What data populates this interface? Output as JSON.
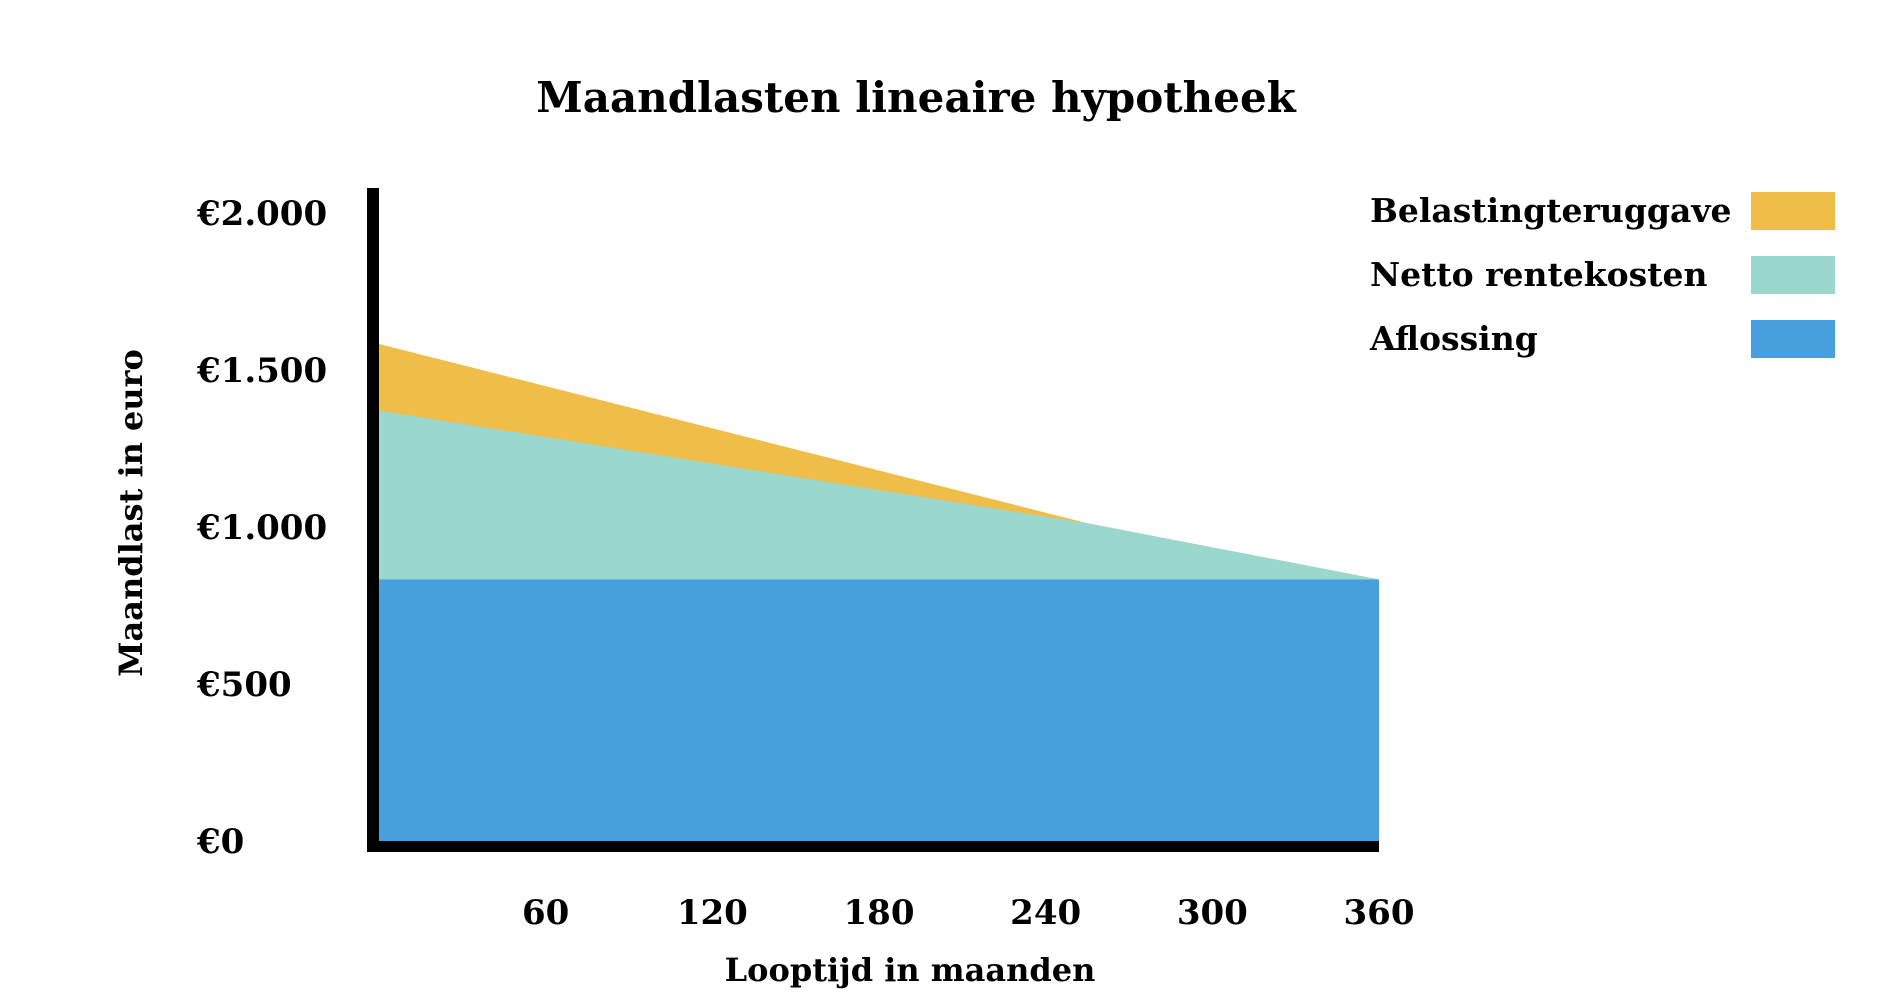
{
  "chart_data": {
    "type": "area",
    "stacked": true,
    "title": "Maandlasten lineaire hypotheek",
    "xlabel": "Looptijd in maanden",
    "ylabel": "Maandlast in euro",
    "xlim": [
      0,
      360
    ],
    "ylim": [
      0,
      2000
    ],
    "x_ticks": [
      60,
      120,
      180,
      240,
      300,
      360
    ],
    "x_tick_labels": [
      "60",
      "120",
      "180",
      "240",
      "300",
      "360"
    ],
    "y_ticks": [
      0,
      500,
      1000,
      1500,
      2000
    ],
    "y_tick_labels": [
      "€0",
      "€500",
      "€1.000",
      "€1.500",
      "€2.000"
    ],
    "grid": false,
    "legend_position": "top-right",
    "x": [
      0,
      255,
      360
    ],
    "series": [
      {
        "name": "Aflossing",
        "color": "#489fdd",
        "top": [
          833,
          833,
          833
        ]
      },
      {
        "name": "Netto rentekosten",
        "color": "#9ad7cc",
        "top": [
          1371,
          1012,
          833
        ]
      },
      {
        "name": "Belastingteruggave",
        "color": "#f0bd48",
        "top": [
          1583,
          1012,
          833
        ]
      }
    ],
    "legend": [
      "Belastingteruggave",
      "Netto rentekosten",
      "Aflossing"
    ]
  }
}
